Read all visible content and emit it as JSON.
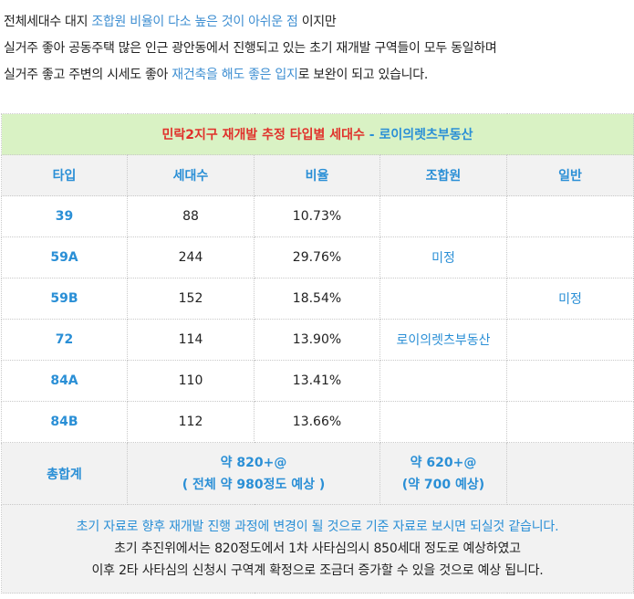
{
  "intro": {
    "line1": {
      "a": "전체세대수 대지 ",
      "b": "조합원 비율이 다소 높은 것이 아쉬운 점",
      "c": " 이지만"
    },
    "line2": "실거주 좋아 공동주택 많은 인근 광안동에서 진행되고 있는 초기 재개발 구역들이 모두 동일하며",
    "line3": {
      "a": "실거주 좋고 주변의 시세도 좋아 ",
      "b": "재건축을 해도 좋은 입지",
      "c": "로 보완이 되고 있습니다."
    }
  },
  "table": {
    "title": {
      "main": "민락2지구 재개발 추정 타입별 세대수",
      "sub": " - 로이의렛츠부동산"
    },
    "headers": [
      "타입",
      "세대수",
      "비율",
      "조합원",
      "일반"
    ],
    "rows": [
      {
        "type": "39",
        "count": "88",
        "ratio": "10.73%"
      },
      {
        "type": "59A",
        "count": "244",
        "ratio": "29.76%"
      },
      {
        "type": "59B",
        "count": "152",
        "ratio": "18.54%"
      },
      {
        "type": "72",
        "count": "114",
        "ratio": "13.90%"
      },
      {
        "type": "84A",
        "count": "110",
        "ratio": "13.41%"
      },
      {
        "type": "84B",
        "count": "112",
        "ratio": "13.66%"
      }
    ],
    "union_undecided": "미정",
    "union_source": "로이의렛츠부동산",
    "general_undecided": "미정",
    "total": {
      "label": "총합계",
      "count_line1": "약 820+@",
      "count_line2": "( 전체 약 980정도 예상 )",
      "union_line1": "약 620+@",
      "union_line2": "(약 700 예상)"
    },
    "notes": {
      "line1": "초기 자료로 향후 재개발 진행 과정에 변경이 될 것으로 기준 자료로 보시면 되실것 같습니다.",
      "line2": "초기 추진위에서는 820정도에서 1차 사타심의시 850세대 정도로 예상하였고",
      "line3": "이후 2타 사타심의 신청시 구역계 확정으로 조금더 증가할 수 있을 것으로 예상 됩니다."
    }
  },
  "colors": {
    "accent_blue": "#2a8fd6",
    "title_red": "#e0312b",
    "title_bg": "#d9f2c4",
    "header_bg": "#f2f2f2"
  }
}
